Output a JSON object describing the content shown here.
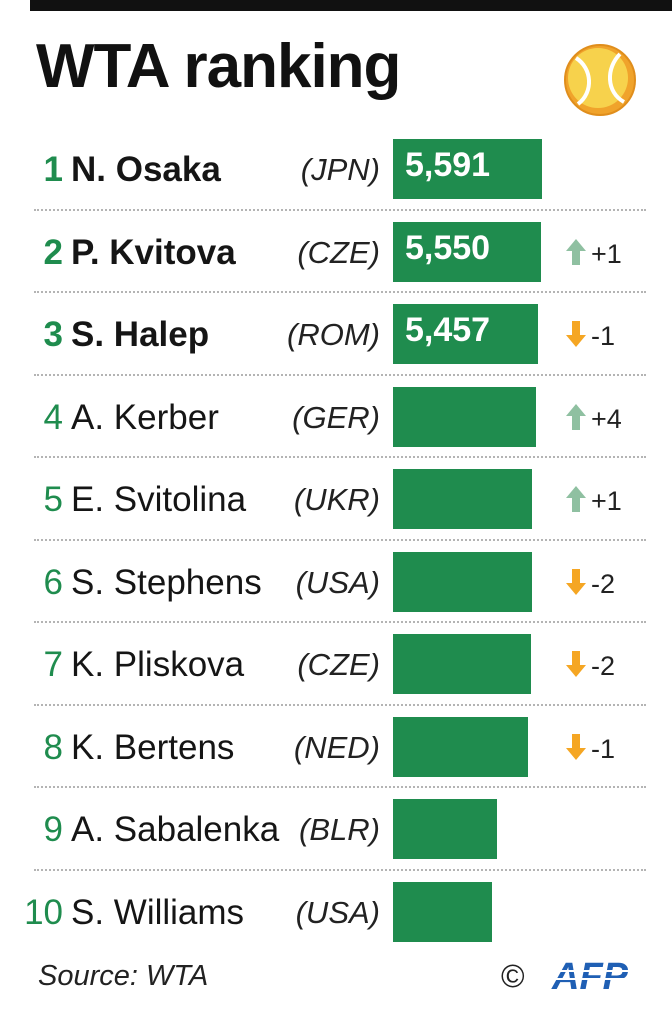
{
  "title": "WTA ranking",
  "source": "Source: WTA",
  "copyright": "©",
  "agency_logo": "AFP",
  "icons": {
    "header": "tennis-ball-icon",
    "up": "arrow-up-icon",
    "down": "arrow-down-icon"
  },
  "colors": {
    "bar": "#1f8c4e",
    "rank_text": "#1f8c4e",
    "arrow_up": "#8fc0a1",
    "arrow_down": "#f5a623",
    "afp_logo": "#1f5fb4",
    "ball_yellow": "#f7d24c",
    "ball_orange": "#f0a32b"
  },
  "chart_data": {
    "type": "bar",
    "orientation": "horizontal",
    "title": "WTA ranking",
    "categories": [
      "N. Osaka",
      "P. Kvitova",
      "S. Halep",
      "A. Kerber",
      "E. Svitolina",
      "S. Stephens",
      "K. Pliskova",
      "K. Bertens",
      "A. Sabalenka",
      "S. Williams"
    ],
    "values": [
      5591,
      5550,
      5457,
      5350,
      5225,
      5222,
      5185,
      5050,
      3885,
      3725
    ],
    "rows": [
      {
        "rank": "1",
        "name": "N. Osaka",
        "country": "(JPN)",
        "points": 5591,
        "points_label": "5,591",
        "change": "",
        "direction": "none",
        "bold": true
      },
      {
        "rank": "2",
        "name": "P. Kvitova",
        "country": "(CZE)",
        "points": 5550,
        "points_label": "5,550",
        "change": "+1",
        "direction": "up",
        "bold": true
      },
      {
        "rank": "3",
        "name": "S. Halep",
        "country": "(ROM)",
        "points": 5457,
        "points_label": "5,457",
        "change": "-1",
        "direction": "down",
        "bold": true
      },
      {
        "rank": "4",
        "name": "A. Kerber",
        "country": "(GER)",
        "points": 5350,
        "points_label": "",
        "change": "+4",
        "direction": "up",
        "bold": false
      },
      {
        "rank": "5",
        "name": "E. Svitolina",
        "country": "(UKR)",
        "points": 5225,
        "points_label": "",
        "change": "+1",
        "direction": "up",
        "bold": false
      },
      {
        "rank": "6",
        "name": "S. Stephens",
        "country": "(USA)",
        "points": 5222,
        "points_label": "",
        "change": "-2",
        "direction": "down",
        "bold": false
      },
      {
        "rank": "7",
        "name": "K. Pliskova",
        "country": "(CZE)",
        "points": 5185,
        "points_label": "",
        "change": "-2",
        "direction": "down",
        "bold": false
      },
      {
        "rank": "8",
        "name": "K. Bertens",
        "country": "(NED)",
        "points": 5050,
        "points_label": "",
        "change": "-1",
        "direction": "down",
        "bold": false
      },
      {
        "rank": "9",
        "name": "A. Sabalenka",
        "country": "(BLR)",
        "points": 3885,
        "points_label": "",
        "change": "",
        "direction": "none",
        "bold": false
      },
      {
        "rank": "10",
        "name": "S. Williams",
        "country": "(USA)",
        "points": 3725,
        "points_label": "",
        "change": "",
        "direction": "none",
        "bold": false
      }
    ],
    "legend": "none",
    "grid": false
  }
}
